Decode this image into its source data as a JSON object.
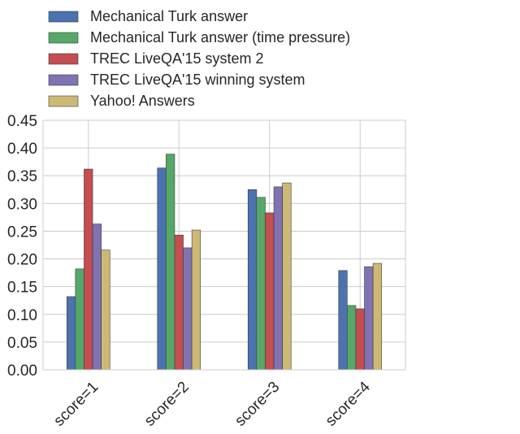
{
  "chart_data": {
    "type": "bar",
    "title": "",
    "xlabel": "",
    "ylabel": "",
    "categories": [
      "score=1",
      "score=2",
      "score=3",
      "score=4"
    ],
    "ylim": [
      0,
      0.45
    ],
    "yticks": [
      "0.00",
      "0.05",
      "0.10",
      "0.15",
      "0.20",
      "0.25",
      "0.30",
      "0.35",
      "0.40",
      "0.45"
    ],
    "grid": true,
    "legend_placement": "top-left, above the plot",
    "series": [
      {
        "name": "Mechanical Turk answer",
        "color": "#4c72b0",
        "values": [
          0.132,
          0.364,
          0.325,
          0.179
        ]
      },
      {
        "name": "Mechanical Turk answer (time pressure)",
        "color": "#55a868",
        "values": [
          0.182,
          0.389,
          0.311,
          0.116
        ]
      },
      {
        "name": "TREC LiveQA'15 system 2",
        "color": "#c44e52",
        "values": [
          0.362,
          0.243,
          0.283,
          0.11
        ]
      },
      {
        "name": "TREC LiveQA'15 winning system",
        "color": "#8172b2",
        "values": [
          0.263,
          0.22,
          0.33,
          0.186
        ]
      },
      {
        "name": "Yahoo! Answers",
        "color": "#ccb974",
        "values": [
          0.216,
          0.252,
          0.337,
          0.192
        ]
      }
    ]
  }
}
